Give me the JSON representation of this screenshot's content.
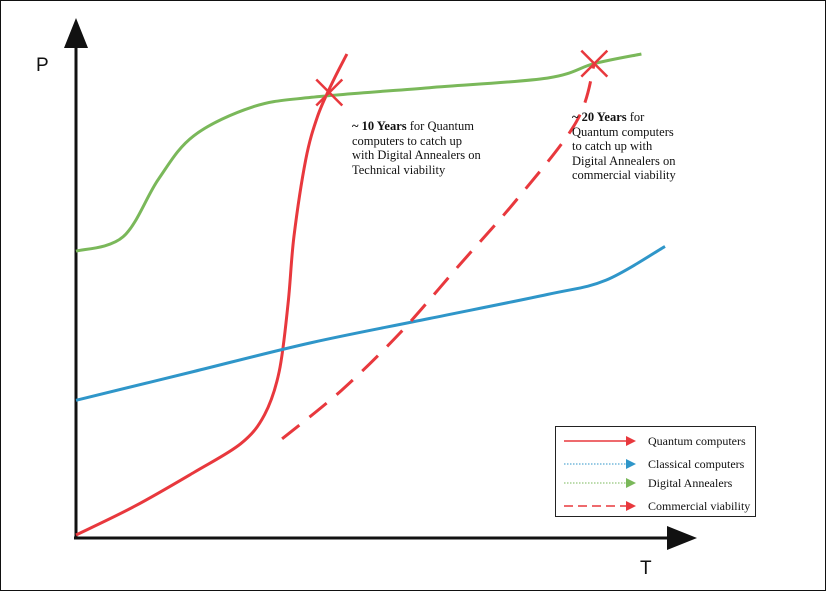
{
  "chart_data": {
    "type": "line",
    "xlabel": "T",
    "ylabel": "P",
    "xlim": [
      0,
      1
    ],
    "ylim": [
      0,
      1
    ],
    "grid": false,
    "legend_position": "bottom-right",
    "series": [
      {
        "name": "Quantum computers",
        "color": "#e8383d",
        "style": "solid",
        "x": [
          0.0,
          0.1,
          0.2,
          0.28,
          0.32,
          0.345,
          0.36,
          0.37,
          0.39,
          0.41,
          0.435,
          0.46
        ],
        "y": [
          0.0,
          0.06,
          0.13,
          0.19,
          0.25,
          0.34,
          0.48,
          0.62,
          0.78,
          0.87,
          0.94,
          1.0
        ]
      },
      {
        "name": "Classical computers",
        "color": "#2f96c9",
        "style": "solid",
        "x": [
          0.0,
          0.2,
          0.4,
          0.6,
          0.8,
          0.9,
          1.0
        ],
        "y": [
          0.28,
          0.34,
          0.4,
          0.45,
          0.5,
          0.53,
          0.6
        ]
      },
      {
        "name": "Digital Annealers",
        "color": "#7ab85a",
        "style": "solid",
        "x": [
          0.0,
          0.08,
          0.14,
          0.2,
          0.3,
          0.4,
          0.6,
          0.8,
          0.88,
          0.96
        ],
        "y": [
          0.59,
          0.62,
          0.74,
          0.83,
          0.89,
          0.91,
          0.93,
          0.95,
          0.98,
          1.0
        ]
      },
      {
        "name": "Commercial viability",
        "color": "#e8383d",
        "style": "dashed",
        "x": [
          0.35,
          0.45,
          0.55,
          0.65,
          0.75,
          0.85,
          0.88
        ],
        "y": [
          0.2,
          0.3,
          0.42,
          0.56,
          0.7,
          0.86,
          0.98
        ]
      }
    ],
    "markers": [
      {
        "type": "cross",
        "color": "#e8383d",
        "x": 0.43,
        "y": 0.92
      },
      {
        "type": "cross",
        "color": "#e8383d",
        "x": 0.88,
        "y": 0.98
      }
    ],
    "annotations": [
      {
        "lines": [
          {
            "bold": "~ 10 Years",
            "text": " for Quantum"
          },
          {
            "bold": "",
            "text": "computers to catch up"
          },
          {
            "bold": "",
            "text": "with Digital Annealers on"
          },
          {
            "bold": "",
            "text": "Technical viability"
          }
        ]
      },
      {
        "lines": [
          {
            "bold": "~ 20 Years",
            "text": " for"
          },
          {
            "bold": "",
            "text": "Quantum computers"
          },
          {
            "bold": "",
            "text": "to catch up with"
          },
          {
            "bold": "",
            "text": "Digital Annealers on"
          },
          {
            "bold": "",
            "text": "commercial viability"
          }
        ]
      }
    ]
  }
}
